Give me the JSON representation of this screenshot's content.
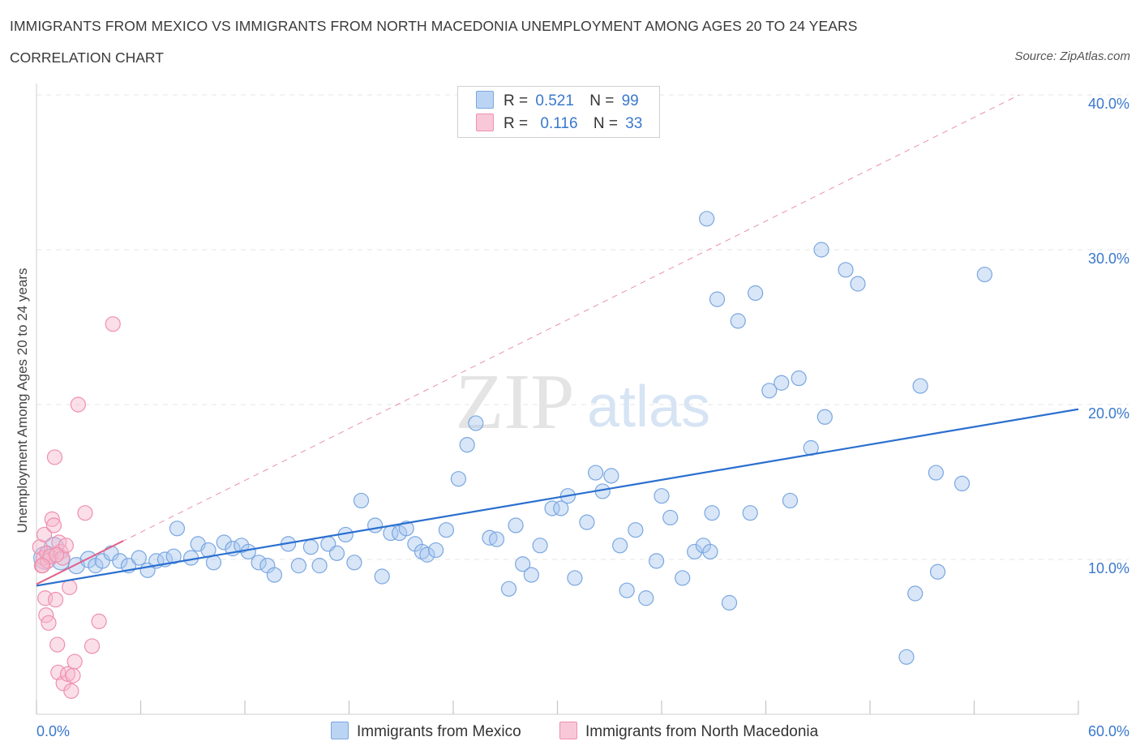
{
  "header": {
    "title": "IMMIGRANTS FROM MEXICO VS IMMIGRANTS FROM NORTH MACEDONIA UNEMPLOYMENT AMONG AGES 20 TO 24 YEARS",
    "subtitle": "CORRELATION CHART",
    "source": "Source: ZipAtlas.com"
  },
  "legend_stats": {
    "r_label": "R =",
    "n_label": "N =",
    "mexico": {
      "r": "0.521",
      "n": "99"
    },
    "macedonia": {
      "r": "0.116",
      "n": "33"
    }
  },
  "legend": {
    "mexico": "Immigrants from Mexico",
    "macedonia": "Immigrants from North Macedonia"
  },
  "watermark": {
    "zip": "ZIP",
    "atlas": "atlas"
  },
  "colors": {
    "mexico_fill": "#a9c8f0",
    "mexico_stroke": "#7aa7e0",
    "mexico_line": "#2a6fcf",
    "macedonia_fill": "#f7b8cc",
    "macedonia_stroke": "#ef8fae",
    "macedonia_line": "#e0628c",
    "axis_label_color": "#3a78cc",
    "grid": "#e4e4e4"
  },
  "chart_data": {
    "type": "scatter",
    "ylabel": "Unemployment Among Ages 20 to 24 years",
    "xlim": [
      0,
      60
    ],
    "ylim": [
      0,
      40
    ],
    "x_tick_labels": [
      "0.0%",
      "60.0%"
    ],
    "y_ticks": [
      10,
      20,
      30,
      40
    ],
    "y_tick_labels": [
      "10.0%",
      "20.0%",
      "30.0%",
      "40.0%"
    ],
    "grid": "horizontal dashed",
    "legend_placement": "top-center and bottom",
    "series": [
      {
        "name": "Immigrants from Mexico",
        "trend": {
          "x": [
            0,
            60
          ],
          "y": [
            8.3,
            19.7
          ]
        },
        "points": [
          [
            0.5,
            10.1,
            14
          ],
          [
            1.0,
            10.8,
            12
          ],
          [
            1.4,
            9.9,
            11
          ],
          [
            2.3,
            9.6,
            10
          ],
          [
            3.0,
            10.0,
            10
          ],
          [
            3.4,
            9.6,
            9
          ],
          [
            3.8,
            9.9,
            9
          ],
          [
            4.3,
            10.4,
            9
          ],
          [
            4.8,
            9.9,
            9
          ],
          [
            5.3,
            9.6,
            9
          ],
          [
            5.9,
            10.1,
            9
          ],
          [
            6.4,
            9.3,
            9
          ],
          [
            6.9,
            9.9,
            9
          ],
          [
            7.4,
            10.0,
            9
          ],
          [
            7.9,
            10.2,
            9
          ],
          [
            8.1,
            12.0,
            9
          ],
          [
            8.9,
            10.1,
            9
          ],
          [
            9.3,
            11.0,
            9
          ],
          [
            9.9,
            10.6,
            9
          ],
          [
            10.2,
            9.8,
            9
          ],
          [
            10.8,
            11.1,
            9
          ],
          [
            11.3,
            10.7,
            9
          ],
          [
            11.8,
            10.9,
            9
          ],
          [
            12.2,
            10.5,
            9
          ],
          [
            12.8,
            9.8,
            9
          ],
          [
            13.3,
            9.6,
            9
          ],
          [
            13.7,
            9.0,
            9
          ],
          [
            14.5,
            11.0,
            9
          ],
          [
            15.1,
            9.6,
            9
          ],
          [
            15.8,
            10.8,
            9
          ],
          [
            16.3,
            9.6,
            9
          ],
          [
            16.8,
            11.0,
            9
          ],
          [
            17.3,
            10.4,
            9
          ],
          [
            17.8,
            11.6,
            9
          ],
          [
            18.3,
            9.8,
            9
          ],
          [
            18.7,
            13.8,
            9
          ],
          [
            19.5,
            12.2,
            9
          ],
          [
            19.9,
            8.9,
            9
          ],
          [
            20.4,
            11.7,
            9
          ],
          [
            20.9,
            11.7,
            9
          ],
          [
            21.3,
            12.0,
            9
          ],
          [
            21.8,
            11.0,
            9
          ],
          [
            22.2,
            10.5,
            9
          ],
          [
            22.5,
            10.3,
            9
          ],
          [
            23.0,
            10.6,
            9
          ],
          [
            23.6,
            11.9,
            9
          ],
          [
            24.3,
            15.2,
            9
          ],
          [
            24.8,
            17.4,
            9
          ],
          [
            25.3,
            18.8,
            9
          ],
          [
            26.1,
            11.4,
            9
          ],
          [
            26.5,
            11.3,
            9
          ],
          [
            27.2,
            8.1,
            9
          ],
          [
            27.6,
            12.2,
            9
          ],
          [
            28.0,
            9.7,
            9
          ],
          [
            28.5,
            9.0,
            9
          ],
          [
            29.0,
            10.9,
            9
          ],
          [
            29.7,
            13.3,
            9
          ],
          [
            30.2,
            13.3,
            9
          ],
          [
            30.6,
            14.1,
            9
          ],
          [
            31.0,
            8.8,
            9
          ],
          [
            31.7,
            12.4,
            9
          ],
          [
            32.2,
            15.6,
            9
          ],
          [
            32.6,
            14.4,
            9
          ],
          [
            33.1,
            15.4,
            9
          ],
          [
            33.6,
            10.9,
            9
          ],
          [
            34.0,
            8.0,
            9
          ],
          [
            34.5,
            11.9,
            9
          ],
          [
            35.1,
            7.5,
            9
          ],
          [
            35.7,
            9.9,
            9
          ],
          [
            36.0,
            14.1,
            9
          ],
          [
            36.5,
            12.7,
            9
          ],
          [
            37.2,
            8.8,
            9
          ],
          [
            37.9,
            10.5,
            9
          ],
          [
            38.4,
            10.9,
            9
          ],
          [
            38.8,
            10.5,
            9
          ],
          [
            38.6,
            32.0,
            9
          ],
          [
            38.9,
            13.0,
            9
          ],
          [
            39.2,
            26.8,
            9
          ],
          [
            39.9,
            7.2,
            9
          ],
          [
            40.4,
            25.4,
            9
          ],
          [
            41.1,
            13.0,
            9
          ],
          [
            41.4,
            27.2,
            9
          ],
          [
            42.2,
            20.9,
            9
          ],
          [
            42.9,
            21.4,
            9
          ],
          [
            43.4,
            13.8,
            9
          ],
          [
            43.9,
            21.7,
            9
          ],
          [
            44.6,
            17.2,
            9
          ],
          [
            45.2,
            30.0,
            9
          ],
          [
            45.4,
            19.2,
            9
          ],
          [
            46.6,
            28.7,
            9
          ],
          [
            47.3,
            27.8,
            9
          ],
          [
            50.1,
            3.7,
            9
          ],
          [
            50.6,
            7.8,
            9
          ],
          [
            50.9,
            21.2,
            9
          ],
          [
            51.8,
            15.6,
            9
          ],
          [
            51.9,
            9.2,
            9
          ],
          [
            53.3,
            14.9,
            9
          ],
          [
            54.6,
            28.4,
            9
          ]
        ]
      },
      {
        "name": "Immigrants from North Macedonia",
        "trend": {
          "x": [
            0,
            5.0
          ],
          "y": [
            8.4,
            11.2
          ]
        },
        "trend_extended": {
          "x": [
            0,
            56.6
          ],
          "y": [
            8.4,
            40.0
          ]
        },
        "points": [
          [
            0.2,
            10.8,
            9
          ],
          [
            0.3,
            9.6,
            9
          ],
          [
            0.4,
            10.1,
            9
          ],
          [
            0.45,
            11.6,
            9
          ],
          [
            0.5,
            7.5,
            9
          ],
          [
            0.55,
            6.4,
            9
          ],
          [
            0.6,
            10.4,
            9
          ],
          [
            0.65,
            9.9,
            9
          ],
          [
            0.7,
            5.9,
            9
          ],
          [
            0.8,
            10.2,
            9
          ],
          [
            0.9,
            12.6,
            9
          ],
          [
            1.0,
            12.2,
            9
          ],
          [
            1.05,
            16.6,
            9
          ],
          [
            1.1,
            7.4,
            9
          ],
          [
            1.2,
            4.5,
            9
          ],
          [
            1.25,
            2.7,
            9
          ],
          [
            1.3,
            11.1,
            9
          ],
          [
            1.4,
            10.5,
            9
          ],
          [
            1.5,
            10.1,
            9
          ],
          [
            1.55,
            2.0,
            9
          ],
          [
            1.7,
            10.9,
            9
          ],
          [
            1.8,
            2.6,
            9
          ],
          [
            1.9,
            8.2,
            9
          ],
          [
            2.0,
            1.5,
            9
          ],
          [
            2.1,
            2.5,
            9
          ],
          [
            2.2,
            3.4,
            9
          ],
          [
            2.4,
            20.0,
            9
          ],
          [
            2.8,
            13.0,
            9
          ],
          [
            3.2,
            4.4,
            9
          ],
          [
            3.6,
            6.0,
            9
          ],
          [
            4.4,
            25.2,
            9
          ],
          [
            0.35,
            9.6,
            9
          ],
          [
            1.15,
            10.3,
            9
          ]
        ]
      }
    ]
  }
}
